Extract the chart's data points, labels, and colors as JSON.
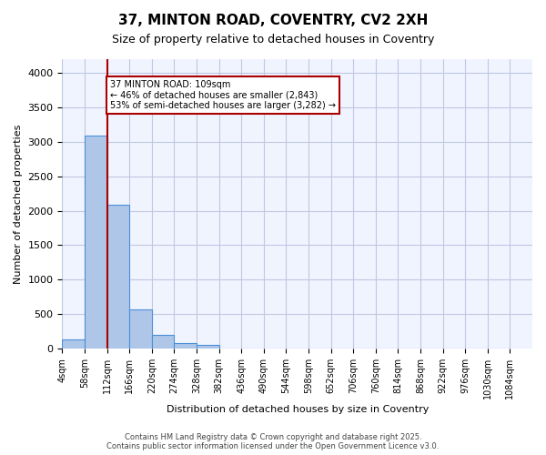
{
  "title": "37, MINTON ROAD, COVENTRY, CV2 2XH",
  "subtitle": "Size of property relative to detached houses in Coventry",
  "xlabel": "Distribution of detached houses by size in Coventry",
  "ylabel": "Number of detached properties",
  "bar_color": "#aec6e8",
  "bar_edge_color": "#4a90d9",
  "background_color": "#f0f4ff",
  "grid_color": "#c0c8e0",
  "annotation_line_color": "#aa0000",
  "annotation_box_color": "#aa0000",
  "property_line_x": 2,
  "annotation_text": "37 MINTON ROAD: 109sqm\n← 46% of detached houses are smaller (2,843)\n53% of semi-detached houses are larger (3,282) →",
  "footer_text": "Contains HM Land Registry data © Crown copyright and database right 2025.\nContains public sector information licensed under the Open Government Licence v3.0.",
  "bin_labels": [
    "4sqm",
    "58sqm",
    "112sqm",
    "166sqm",
    "220sqm",
    "274sqm",
    "328sqm",
    "382sqm",
    "436sqm",
    "490sqm",
    "544sqm",
    "598sqm",
    "652sqm",
    "706sqm",
    "760sqm",
    "814sqm",
    "868sqm",
    "922sqm",
    "976sqm",
    "1030sqm",
    "1084sqm"
  ],
  "bar_heights": [
    130,
    3090,
    2090,
    570,
    200,
    80,
    50,
    0,
    0,
    0,
    0,
    0,
    0,
    0,
    0,
    0,
    0,
    0,
    0,
    0
  ],
  "ylim": [
    0,
    4200
  ],
  "yticks": [
    0,
    500,
    1000,
    1500,
    2000,
    2500,
    3000,
    3500,
    4000
  ]
}
